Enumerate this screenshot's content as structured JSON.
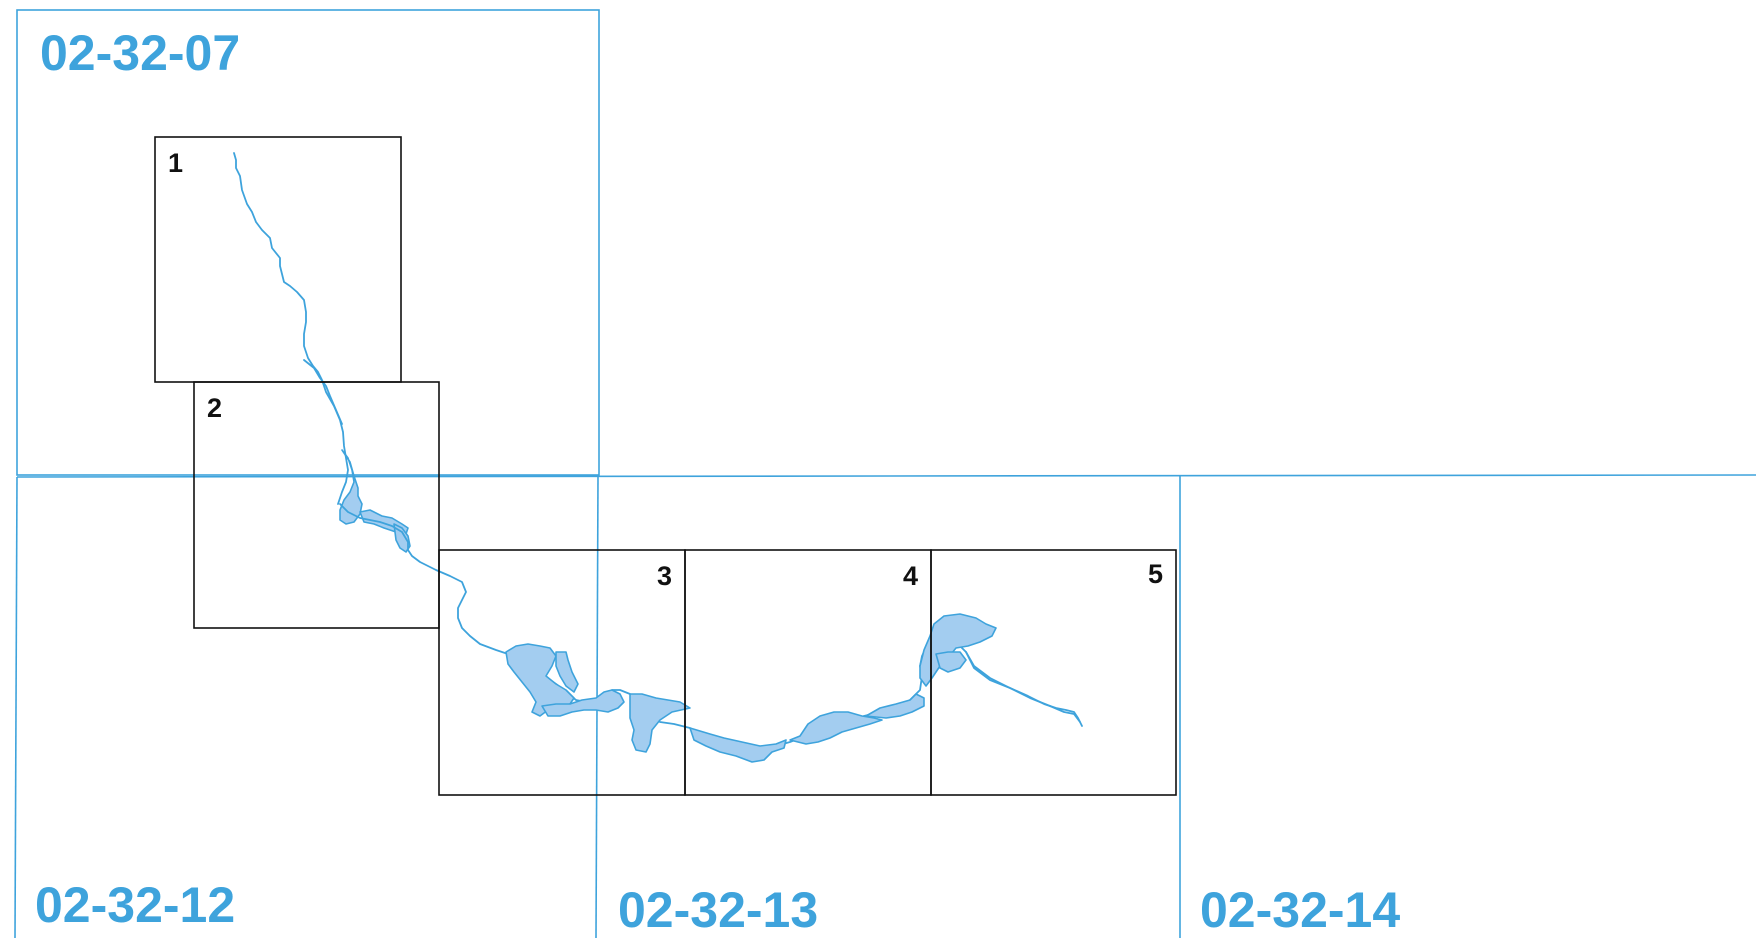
{
  "map": {
    "sheet_labels": {
      "nw": "02-32-07",
      "sw": "02-32-12",
      "s": "02-32-13",
      "se": "02-32-14"
    },
    "tile_labels": [
      "1",
      "2",
      "3",
      "4",
      "5"
    ],
    "colors": {
      "sheet_grid": "#3ea3dc",
      "water_fill": "#a3cdf0",
      "tile_border": "#111111"
    }
  }
}
